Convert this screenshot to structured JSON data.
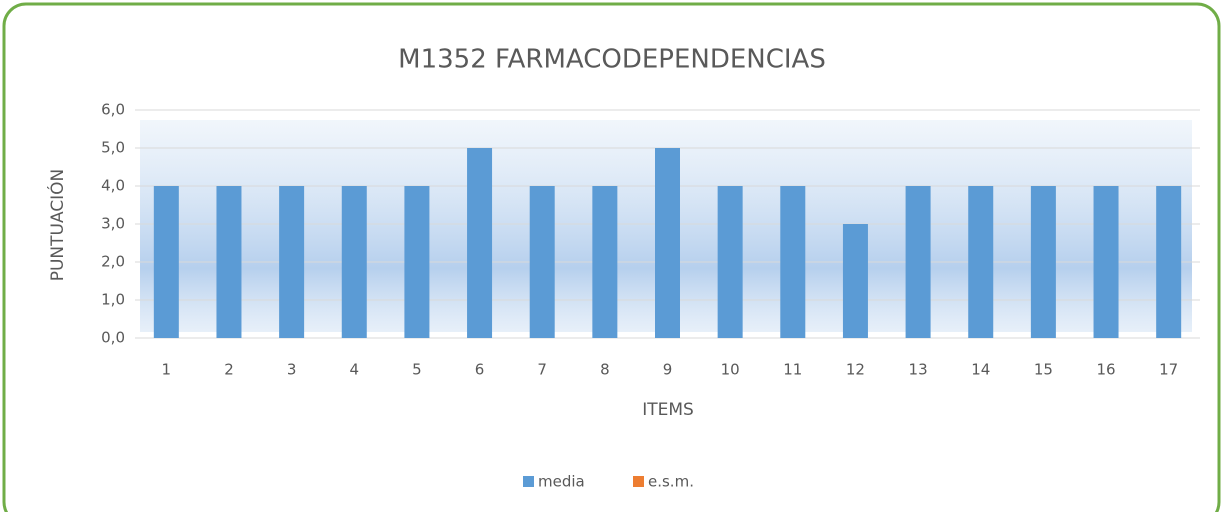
{
  "chart_data": {
    "type": "bar",
    "title": "M1352 FARMACODEPENDENCIAS",
    "x_label": "ITEMS",
    "y_label": "PUNTUACIÓN",
    "categories": [
      "1",
      "2",
      "3",
      "4",
      "5",
      "6",
      "7",
      "8",
      "9",
      "10",
      "11",
      "12",
      "13",
      "14",
      "15",
      "16",
      "17"
    ],
    "series": [
      {
        "name": "media",
        "color": "#5b9bd5",
        "values": [
          4,
          4,
          4,
          4,
          4,
          5,
          4,
          4,
          5,
          4,
          4,
          3,
          4,
          4,
          4,
          4,
          4
        ]
      },
      {
        "name": "e.s.m.",
        "color": "#ed7d31",
        "values": [
          0,
          0,
          0,
          0,
          0,
          0,
          0,
          0,
          0,
          0,
          0,
          0,
          0,
          0,
          0,
          0,
          0
        ]
      }
    ],
    "ylim": [
      0,
      6
    ],
    "yticks": [
      {
        "value": 0,
        "label": "0,0"
      },
      {
        "value": 1,
        "label": "1,0"
      },
      {
        "value": 2,
        "label": "2,0"
      },
      {
        "value": 3,
        "label": "3,0"
      },
      {
        "value": 4,
        "label": "4,0"
      },
      {
        "value": 5,
        "label": "5,0"
      },
      {
        "value": 6,
        "label": "6,0"
      }
    ],
    "grid": true,
    "legend": "bottom"
  }
}
